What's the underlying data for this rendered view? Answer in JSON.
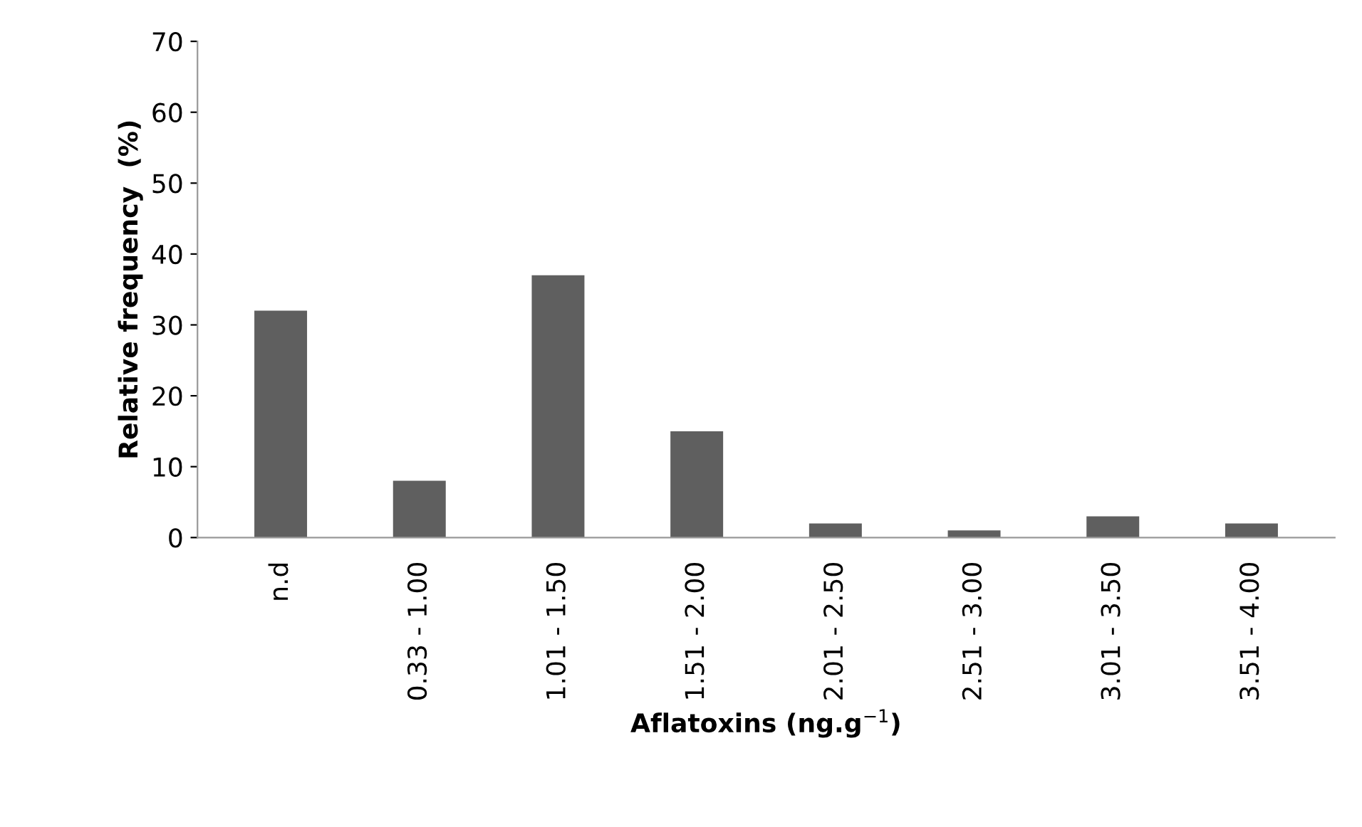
{
  "chart_data": {
    "type": "bar",
    "categories": [
      "n.d",
      "0.33 - 1.00",
      "1.01 - 1.50",
      "1.51 - 2.00",
      "2.01 - 2.50",
      "2.51 - 3.00",
      "3.01 - 3.50",
      "3.51 - 4.00"
    ],
    "values": [
      32,
      8,
      37,
      15,
      2,
      1,
      3,
      2
    ],
    "color": "#5f5f5f",
    "xlabel": "Aflatoxins (ng.g$^{−1}$)",
    "ylabel": "Relative frequency  (%)",
    "ylim": [
      0,
      70
    ],
    "yticks": [
      0,
      10,
      20,
      30,
      40,
      50,
      60,
      70
    ],
    "grid": false
  }
}
